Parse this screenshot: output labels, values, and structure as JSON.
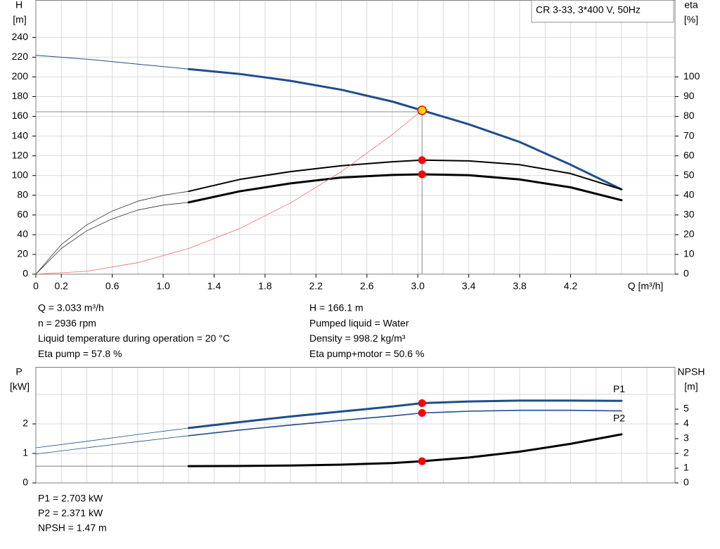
{
  "chart_data": [
    {
      "type": "line",
      "title": "CR 3-33, 3*400 V, 50Hz",
      "x_label": "Q [m³/h]",
      "y_label": [
        "H",
        "[m]"
      ],
      "y2_label": [
        "eta",
        "[%]"
      ],
      "xlim": [
        0,
        5.02
      ],
      "xticks": [
        0,
        0.2,
        {
          "value": 0.6,
          "label": "0.6"
        },
        {
          "value": 1.0,
          "label": "1.0"
        },
        1.4,
        1.8,
        2.2,
        2.6,
        {
          "value": 3.0,
          "label": "3.0"
        },
        3.4,
        3.8,
        4.2
      ],
      "xgrid_minor": [
        0.4,
        0.8,
        1.2,
        1.6,
        2,
        2.4,
        2.8,
        3.2,
        3.6,
        4,
        4.4,
        4.6,
        4.8
      ],
      "ylim": [
        0,
        278
      ],
      "yticks": [
        0,
        20,
        40,
        60,
        80,
        100,
        120,
        140,
        160,
        180,
        200,
        220,
        240
      ],
      "y2lim": [
        0,
        139
      ],
      "y2ticks": [
        0,
        10,
        20,
        30,
        40,
        50,
        60,
        70,
        80,
        90,
        100
      ],
      "grid": true,
      "operating_q": 3.033,
      "series": [
        {
          "x": [
            0,
            0.4,
            0.8,
            1.2
          ],
          "values": [
            222,
            218,
            213,
            208
          ],
          "color": "#1f4e8c",
          "width": 1
        },
        {
          "x": [
            1.2,
            1.6,
            2.0,
            2.4,
            2.8,
            3.033,
            3.4,
            3.8,
            4.2,
            4.6
          ],
          "values": [
            208,
            203,
            196,
            187,
            175,
            166.1,
            152,
            134,
            111,
            86
          ],
          "color": "#1f4e8c",
          "width": 3,
          "point_color": "#ffd700"
        },
        {
          "x": [
            0,
            0.2,
            0.4,
            0.6,
            0.8,
            1.0,
            1.2
          ],
          "values": [
            0,
            15,
            25,
            32,
            37,
            40,
            42
          ],
          "color": "#333333",
          "width": 0.8,
          "axis": "y2"
        },
        {
          "x": [
            1.2,
            1.6,
            2.0,
            2.4,
            2.8,
            3.033,
            3.4,
            3.8,
            4.2,
            4.6
          ],
          "values": [
            42,
            48,
            52,
            55,
            57,
            57.8,
            57.4,
            55.5,
            51,
            43
          ],
          "color": "#000000",
          "width": 2,
          "axis": "y2",
          "point_color": "#ff0000"
        },
        {
          "x": [
            0,
            0.2,
            0.4,
            0.6,
            0.8,
            1.0,
            1.2
          ],
          "values": [
            0,
            13,
            22,
            28,
            32.5,
            35,
            36.4
          ],
          "color": "#333333",
          "width": 0.8,
          "axis": "y2"
        },
        {
          "x": [
            1.2,
            1.6,
            2.0,
            2.4,
            2.8,
            3.033,
            3.4,
            3.8,
            4.2,
            4.6
          ],
          "values": [
            36.4,
            42,
            46,
            49,
            50.3,
            50.6,
            50.2,
            48,
            44,
            37.5
          ],
          "color": "#000000",
          "width": 3,
          "axis": "y2",
          "point_color": "#ff0000"
        },
        {
          "x": [
            0,
            0.4,
            0.8,
            1.2,
            1.6,
            2.0,
            2.4,
            2.8,
            3.033
          ],
          "values": [
            0,
            2.9,
            11.6,
            26.0,
            46.2,
            72.2,
            104.0,
            141.6,
            166.1
          ],
          "color": "#ff6666",
          "width": 0.8
        }
      ],
      "notes": [
        [
          "Q = 3.033 m³/h",
          "H = 166.1 m"
        ],
        [
          "n = 2936 rpm",
          "Pumped liquid = Water"
        ],
        [
          "Liquid temperature during operation = 20 °C",
          "Density = 998.2 kg/m³"
        ],
        [
          "Eta pump = 57.8 %",
          "Eta pump+motor = 50.6 %"
        ]
      ]
    },
    {
      "type": "line",
      "y_label": [
        "P",
        "[kW]"
      ],
      "y2_label": [
        "NPSH",
        "[m]"
      ],
      "xlim": [
        0,
        5.02
      ],
      "xgrid_minor": [
        0.2,
        0.4,
        0.6,
        0.8,
        1,
        1.2,
        1.4,
        1.6,
        1.8,
        2,
        2.2,
        2.4,
        2.6,
        2.8,
        3,
        3.2,
        3.4,
        3.6,
        3.8,
        4,
        4.2,
        4.4,
        4.6,
        4.8
      ],
      "ylim": [
        0,
        3.93
      ],
      "yticks": [
        0,
        1,
        2
      ],
      "ygrid_minor": [
        3
      ],
      "y2lim": [
        0,
        7.86
      ],
      "y2ticks": [
        0,
        1,
        2,
        3,
        4,
        5
      ],
      "grid": true,
      "operating_q": 3.033,
      "series": [
        {
          "x": [
            0,
            0.4,
            0.8,
            1.2
          ],
          "values": [
            1.19,
            1.41,
            1.64,
            1.86
          ],
          "color": "#1f4e8c",
          "width": 0.8
        },
        {
          "name": "P1",
          "x": [
            1.2,
            1.6,
            2.0,
            2.4,
            2.8,
            3.033,
            3.4,
            3.8,
            4.2,
            4.6
          ],
          "values": [
            1.86,
            2.06,
            2.25,
            2.42,
            2.59,
            2.703,
            2.76,
            2.79,
            2.79,
            2.78
          ],
          "color": "#1f4e8c",
          "width": 3,
          "point_color": "#ff0000",
          "label_side": "above"
        },
        {
          "x": [
            0,
            0.4,
            0.8,
            1.2
          ],
          "values": [
            0.98,
            1.19,
            1.4,
            1.6
          ],
          "color": "#1f4e8c",
          "width": 0.8
        },
        {
          "name": "P2",
          "x": [
            1.2,
            1.6,
            2.0,
            2.4,
            2.8,
            3.033,
            3.4,
            3.8,
            4.2,
            4.6
          ],
          "values": [
            1.6,
            1.79,
            1.96,
            2.12,
            2.27,
            2.371,
            2.43,
            2.46,
            2.46,
            2.44
          ],
          "color": "#1f4e8c",
          "width": 1.6,
          "point_color": "#ff0000",
          "label_side": "below"
        },
        {
          "x": [
            0,
            1.2
          ],
          "values": [
            1.14,
            1.14
          ],
          "color": "#555555",
          "width": 0.8,
          "axis": "y2"
        },
        {
          "x": [
            1.2,
            1.6,
            2.0,
            2.4,
            2.8,
            3.033,
            3.4,
            3.8,
            4.2,
            4.6
          ],
          "values": [
            1.14,
            1.15,
            1.18,
            1.24,
            1.35,
            1.47,
            1.72,
            2.12,
            2.65,
            3.29
          ],
          "color": "#000000",
          "width": 3,
          "axis": "y2",
          "point_color": "#ff0000"
        }
      ],
      "notes": [
        [
          "P1 = 2.703 kW"
        ],
        [
          "P2 = 2.371 kW"
        ],
        [
          "NPSH = 1.47 m"
        ]
      ]
    }
  ]
}
